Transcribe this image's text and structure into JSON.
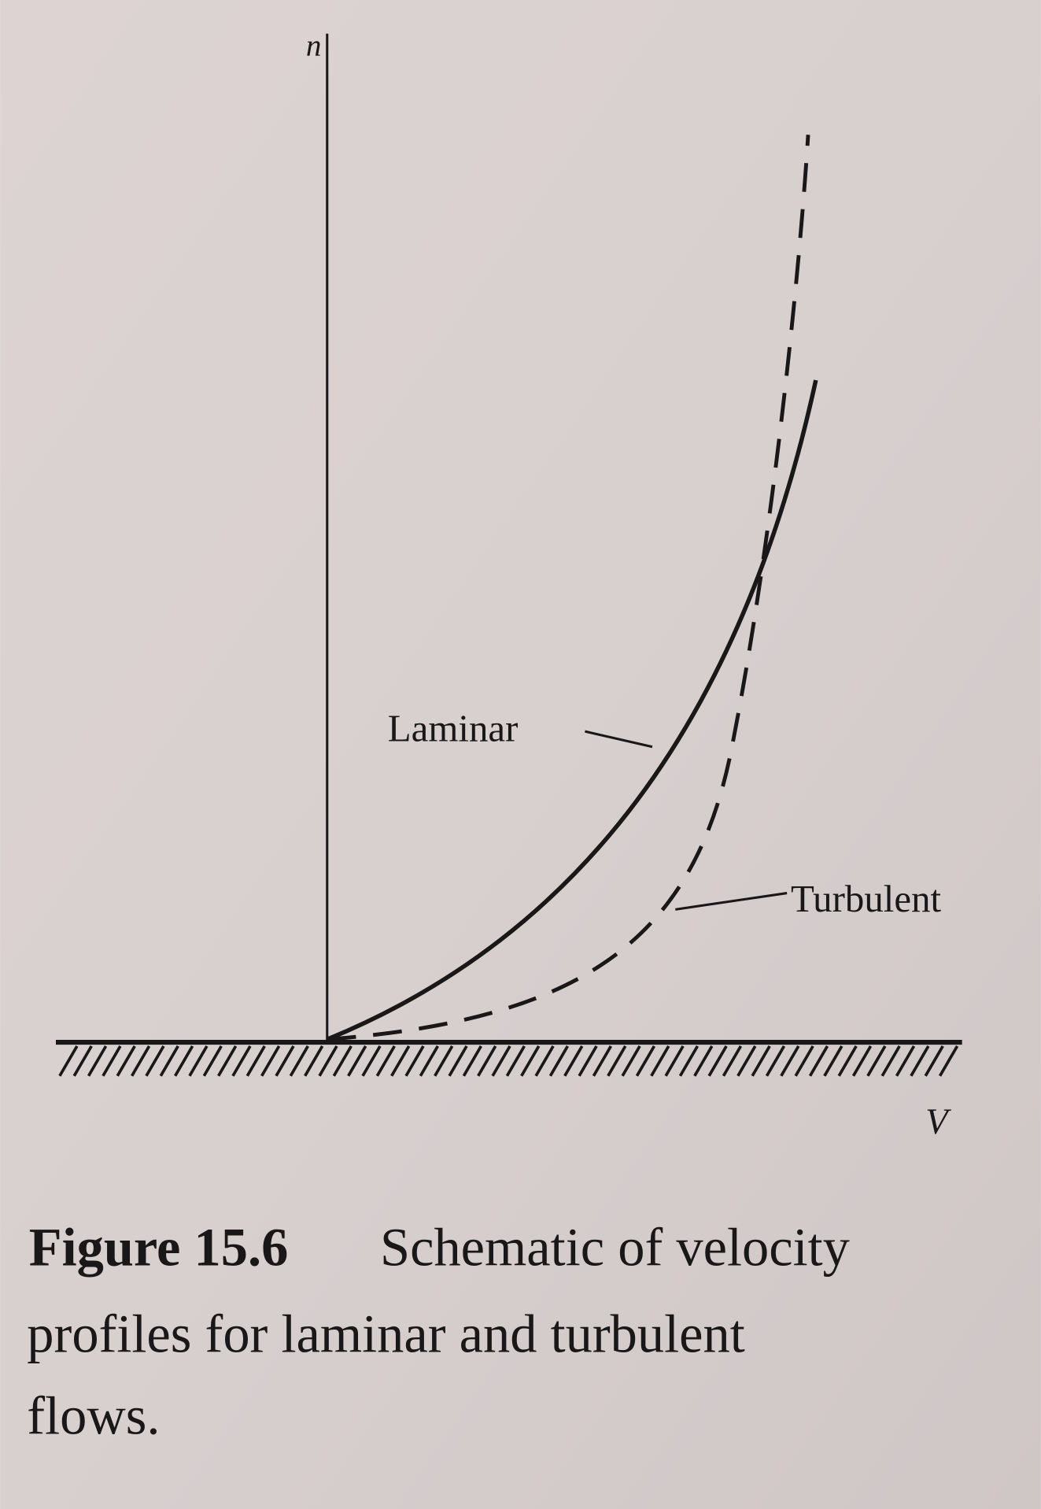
{
  "diagram": {
    "axis_labels": {
      "vertical": "n",
      "horizontal": "V"
    },
    "curves": [
      {
        "label": "Laminar",
        "style": "solid"
      },
      {
        "label": "Turbulent",
        "style": "dashed"
      }
    ]
  },
  "caption": {
    "label": "Figure 15.6",
    "lines": [
      "Schematic of velocity",
      "profiles for laminar and turbulent",
      "flows."
    ]
  }
}
